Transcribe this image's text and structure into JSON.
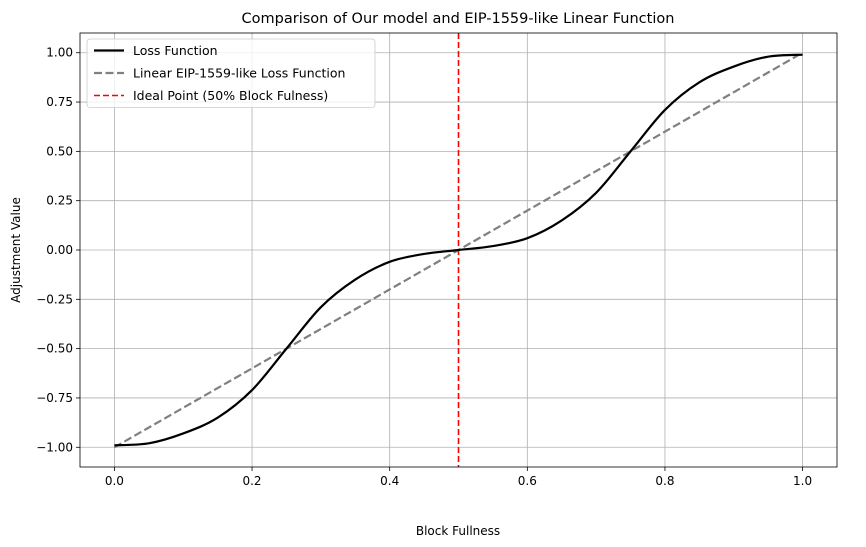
{
  "chart_data": {
    "type": "line",
    "title": "Comparison of Our model and EIP-1559-like Linear Function",
    "xlabel": "Block Fullness",
    "ylabel": "Adjustment Value",
    "xlim": [
      -0.05,
      1.05
    ],
    "ylim": [
      -1.1,
      1.1
    ],
    "x_ticks": [
      0.0,
      0.2,
      0.4,
      0.6,
      0.8,
      1.0
    ],
    "x_tick_labels": [
      "0.0",
      "0.2",
      "0.4",
      "0.6",
      "0.8",
      "1.0"
    ],
    "y_ticks": [
      -1.0,
      -0.75,
      -0.5,
      -0.25,
      0.0,
      0.25,
      0.5,
      0.75,
      1.0
    ],
    "y_tick_labels": [
      "−1.00",
      "−0.75",
      "−0.50",
      "−0.25",
      "0.00",
      "0.25",
      "0.50",
      "0.75",
      "1.00"
    ],
    "grid": true,
    "legend_position": "top-left",
    "series": [
      {
        "name": "Loss Function",
        "color": "#000000",
        "style": "solid",
        "x": [
          0.0,
          0.05,
          0.1,
          0.15,
          0.2,
          0.25,
          0.3,
          0.35,
          0.4,
          0.45,
          0.5,
          0.55,
          0.6,
          0.65,
          0.7,
          0.75,
          0.8,
          0.85,
          0.9,
          0.95,
          1.0
        ],
        "y": [
          -0.99,
          -0.98,
          -0.93,
          -0.85,
          -0.71,
          -0.5,
          -0.29,
          -0.15,
          -0.06,
          -0.02,
          0.0,
          0.02,
          0.06,
          0.15,
          0.29,
          0.5,
          0.71,
          0.85,
          0.93,
          0.98,
          0.99
        ]
      },
      {
        "name": "Linear EIP-1559-like Loss Function",
        "color": "#808080",
        "style": "dashed",
        "x": [
          0.0,
          1.0
        ],
        "y": [
          -1.0,
          1.0
        ]
      }
    ],
    "vlines": [
      {
        "name": "Ideal Point (50% Block Fulness)",
        "x": 0.5,
        "color": "#ff0000",
        "style": "dashed"
      }
    ]
  }
}
